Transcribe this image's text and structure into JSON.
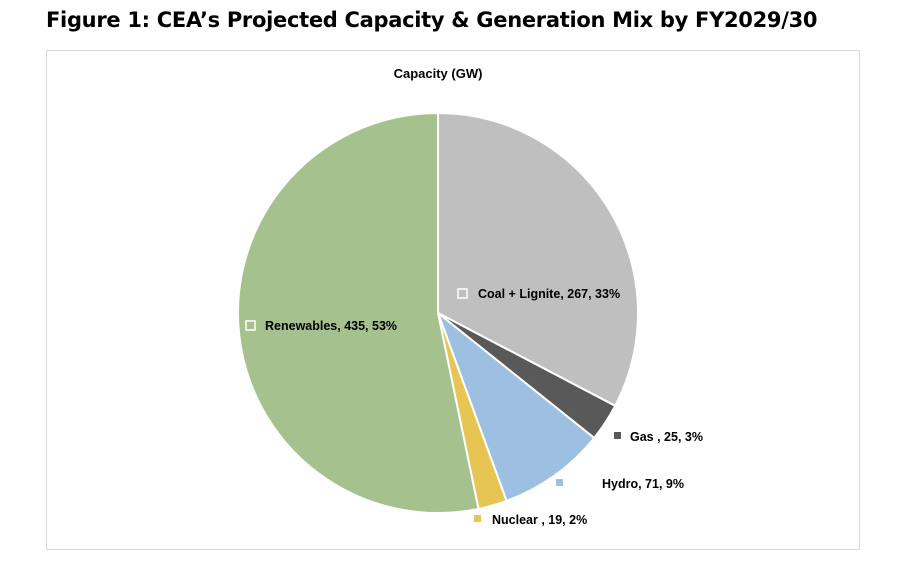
{
  "figure_title": "Figure 1: CEA’s Projected Capacity & Generation Mix by FY2029/30",
  "chart_data": {
    "type": "pie",
    "title": "Capacity (GW)",
    "slices": [
      {
        "name": "Coal + Lignite",
        "value": 267,
        "percent": "33%",
        "color": "#bfbfbf",
        "label": "Coal + Lignite, 267, 33%"
      },
      {
        "name": "Gas",
        "value": 25,
        "percent": "3%",
        "color": "#595959",
        "label": "Gas , 25, 3%"
      },
      {
        "name": "Hydro",
        "value": 71,
        "percent": "9%",
        "color": "#9dc0e2",
        "label": "Hydro, 71, 9%"
      },
      {
        "name": "Nuclear",
        "value": 19,
        "percent": "2%",
        "color": "#e6c552",
        "label": "Nuclear , 19, 2%"
      },
      {
        "name": "Renewables",
        "value": 435,
        "percent": "53%",
        "color": "#a5c28e",
        "label": "Renewables, 435, 53%"
      }
    ]
  }
}
